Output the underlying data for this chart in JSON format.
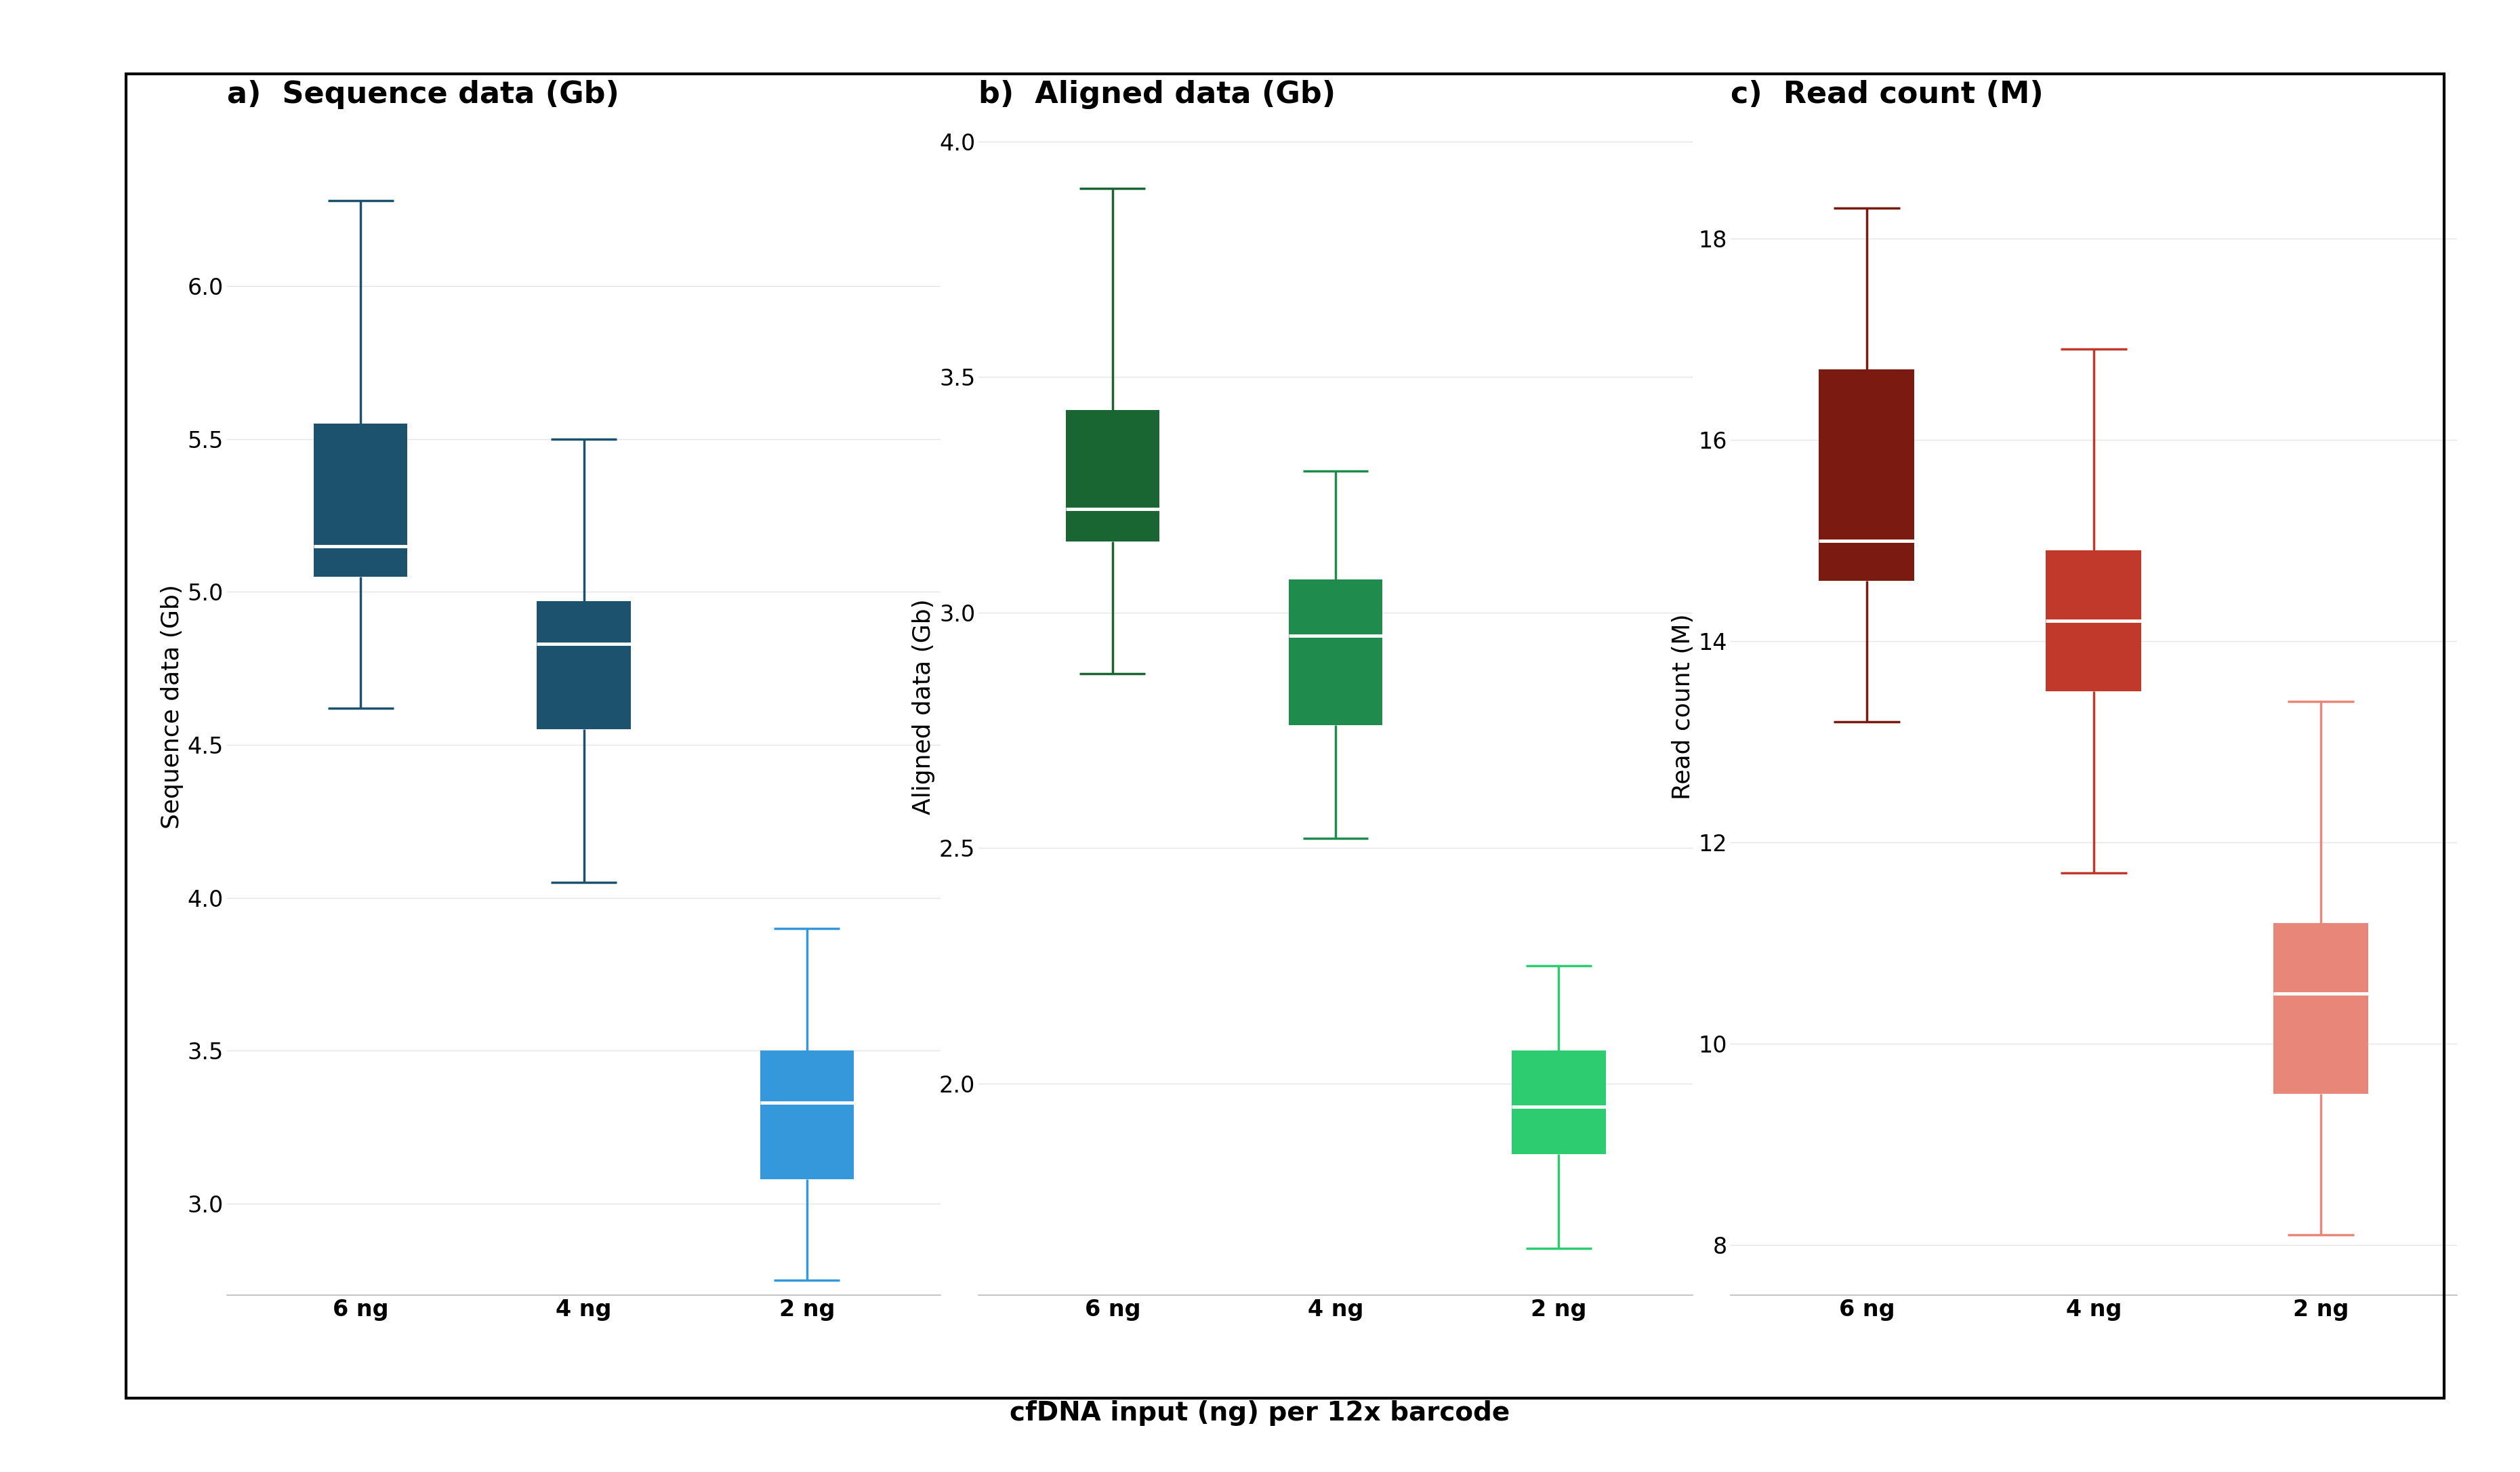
{
  "panel_a": {
    "title": "a)  Sequence data (Gb)",
    "ylabel": "Sequence data (Gb)",
    "categories": [
      "6 ng",
      "4 ng",
      "2 ng"
    ],
    "boxes": [
      {
        "whislo": 4.62,
        "q1": 5.05,
        "med": 5.15,
        "q3": 5.55,
        "whishi": 6.28
      },
      {
        "whislo": 4.05,
        "q1": 4.55,
        "med": 4.83,
        "q3": 4.97,
        "whishi": 5.5
      },
      {
        "whislo": 2.75,
        "q1": 3.08,
        "med": 3.33,
        "q3": 3.5,
        "whishi": 3.9
      }
    ],
    "colors": [
      "#1c526e",
      "#1c526e",
      "#3498db"
    ],
    "ylim": [
      2.7,
      6.55
    ],
    "yticks": [
      3.0,
      3.5,
      4.0,
      4.5,
      5.0,
      5.5,
      6.0
    ]
  },
  "panel_b": {
    "title": "b)  Aligned data (Gb)",
    "ylabel": "Aligned data (Gb)",
    "categories": [
      "6 ng",
      "4 ng",
      "2 ng"
    ],
    "boxes": [
      {
        "whislo": 2.87,
        "q1": 3.15,
        "med": 3.22,
        "q3": 3.43,
        "whishi": 3.9
      },
      {
        "whislo": 2.52,
        "q1": 2.76,
        "med": 2.95,
        "q3": 3.07,
        "whishi": 3.3
      },
      {
        "whislo": 1.65,
        "q1": 1.85,
        "med": 1.95,
        "q3": 2.07,
        "whishi": 2.25
      }
    ],
    "colors": [
      "#1a6632",
      "#1f8b4c",
      "#2ecc71"
    ],
    "ylim": [
      1.55,
      4.05
    ],
    "yticks": [
      2.0,
      2.5,
      3.0,
      3.5,
      4.0
    ]
  },
  "panel_c": {
    "title": "c)  Read count (M)",
    "ylabel": "Read count (M)",
    "categories": [
      "6 ng",
      "4 ng",
      "2 ng"
    ],
    "boxes": [
      {
        "whislo": 13.2,
        "q1": 14.6,
        "med": 15.0,
        "q3": 16.7,
        "whishi": 18.3
      },
      {
        "whislo": 11.7,
        "q1": 13.5,
        "med": 14.2,
        "q3": 14.9,
        "whishi": 16.9
      },
      {
        "whislo": 8.1,
        "q1": 9.5,
        "med": 10.5,
        "q3": 11.2,
        "whishi": 13.4
      }
    ],
    "colors": [
      "#7b1a10",
      "#c0392b",
      "#e8867a"
    ],
    "ylim": [
      7.5,
      19.2
    ],
    "yticks": [
      8,
      10,
      12,
      14,
      16,
      18
    ]
  },
  "xlabel_shared": "cfDNA input (ng) per 12x barcode",
  "background_color": "#ffffff",
  "outer_bg": "#f5f5f5",
  "box_width": 0.42,
  "median_linewidth": 3.5,
  "whisker_linewidth": 2.5,
  "cap_linewidth": 2.5,
  "cap_ratio": 0.35,
  "title_fontsize": 32,
  "label_fontsize": 26,
  "tick_fontsize": 24,
  "xlabel_fontsize": 28
}
